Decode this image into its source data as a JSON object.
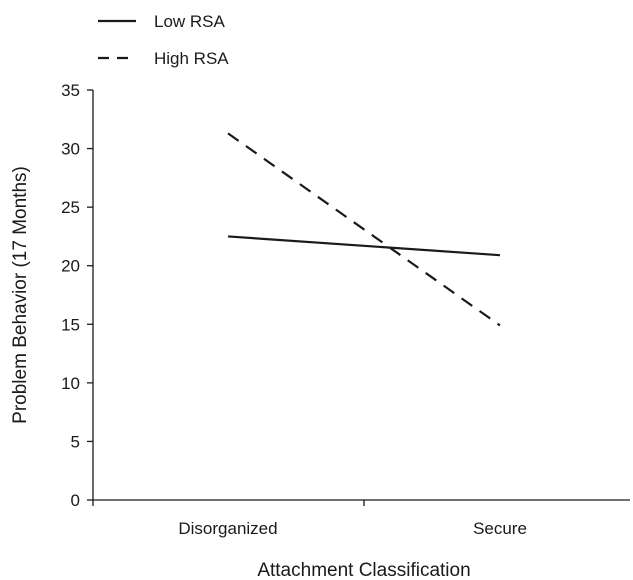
{
  "chart_data": {
    "type": "line",
    "title": "",
    "xlabel": "Attachment Classification",
    "ylabel": "Problem Behavior (17 Months)",
    "categories": [
      "Disorganized",
      "Secure"
    ],
    "ylim": [
      0,
      35
    ],
    "yticks": [
      0,
      5,
      10,
      15,
      20,
      25,
      30,
      35
    ],
    "grid": false,
    "legend_position": "top-left",
    "series": [
      {
        "name": "Low RSA",
        "line_style": "solid",
        "color": "#1a1a1a",
        "values": [
          22.5,
          20.9
        ]
      },
      {
        "name": "High RSA",
        "line_style": "dashed",
        "color": "#1a1a1a",
        "values": [
          31.3,
          14.9
        ]
      }
    ]
  }
}
